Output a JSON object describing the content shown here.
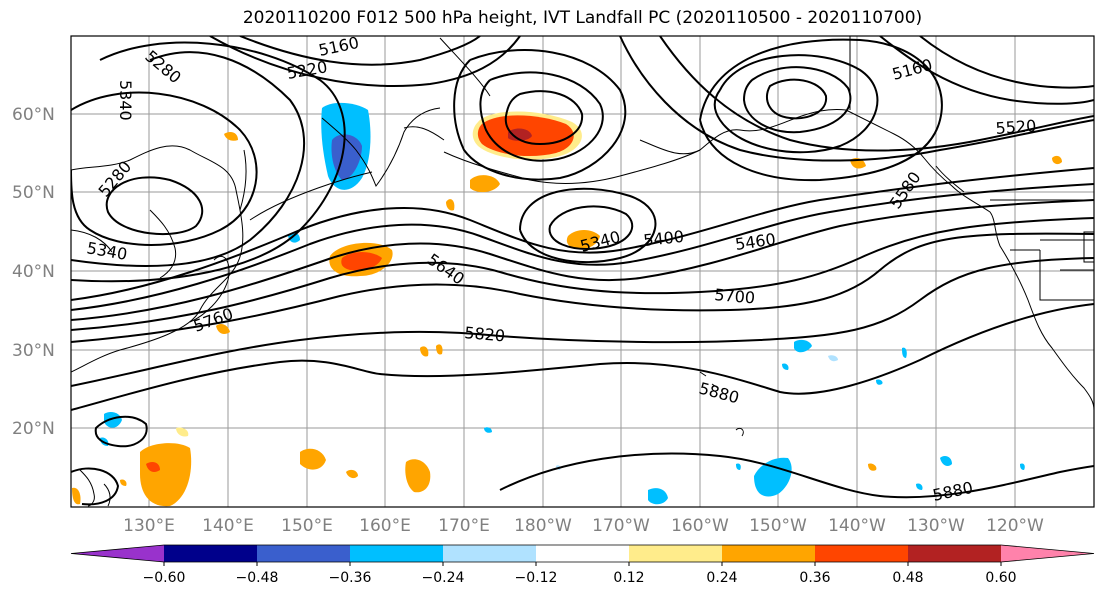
{
  "title": "2020110200 F012 500 hPa height, IVT Landfall PC (2020110500 - 2020110700)",
  "lat_labels": [
    "60°N",
    "50°N",
    "40°N",
    "30°N",
    "20°N"
  ],
  "lon_labels": [
    "130°E",
    "140°E",
    "150°E",
    "160°E",
    "170°E",
    "180°W",
    "170°W",
    "160°W",
    "150°W",
    "140°W",
    "130°W",
    "120°W"
  ],
  "contour_labels": [
    "5280",
    "5160",
    "5220",
    "5340",
    "5280",
    "5340",
    "5640",
    "5760",
    "5820",
    "5340",
    "5400",
    "5460",
    "5700",
    "5880",
    "5160",
    "5520",
    "5580",
    "5880"
  ],
  "colorbar": {
    "ticks": [
      "−0.60",
      "−0.48",
      "−0.36",
      "−0.24",
      "−0.12",
      "0.12",
      "0.24",
      "0.36",
      "0.48",
      "0.60"
    ],
    "colors": [
      "#9932cc",
      "#00008b",
      "#3a5fcd",
      "#00bfff",
      "#b0e2ff",
      "#ffffff",
      "#ffec8b",
      "#ffa500",
      "#ff4500",
      "#b22222",
      "#ff82ab"
    ]
  }
}
